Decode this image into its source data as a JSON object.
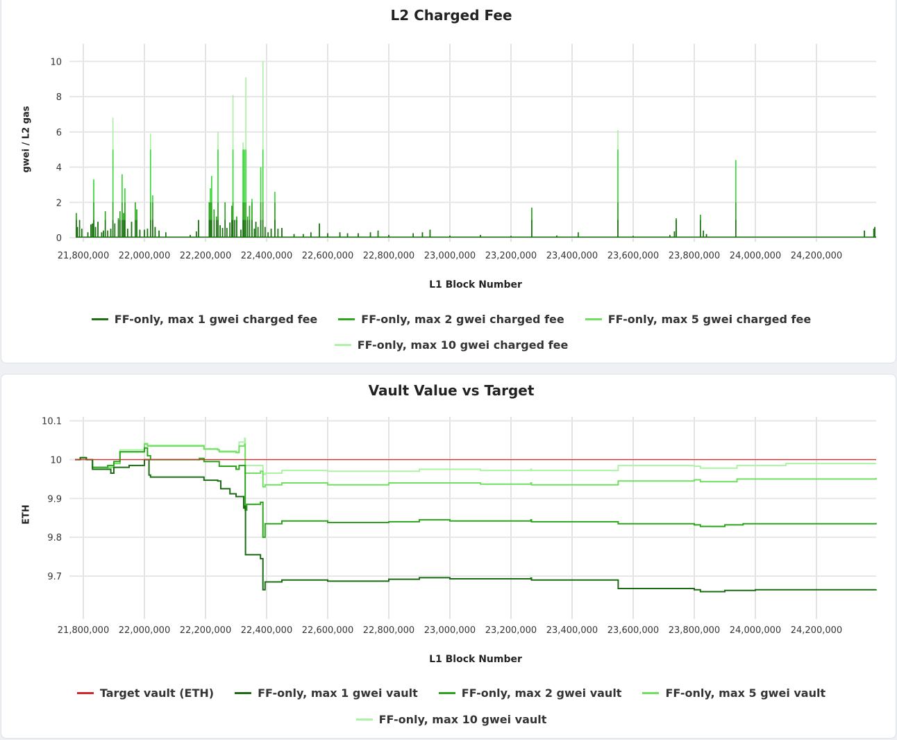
{
  "chart_data": [
    {
      "type": "line",
      "title": "L2 Charged Fee",
      "xlabel": "L1 Block Number",
      "ylabel": "gwei / L2 gas",
      "xlim": [
        21772700,
        24395500
      ],
      "ylim": [
        0,
        11
      ],
      "xticks": [
        21800000,
        22000000,
        22200000,
        22400000,
        22600000,
        22800000,
        23000000,
        23200000,
        23400000,
        23600000,
        23800000,
        24000000,
        24200000
      ],
      "xtick_labels": [
        "21,800,000",
        "22,000,000",
        "22,200,000",
        "22,400,000",
        "22,600,000",
        "22,800,000",
        "23,000,000",
        "23,200,000",
        "23,400,000",
        "23,600,000",
        "23,800,000",
        "24,000,000",
        "24,200,000"
      ],
      "yticks": [
        0,
        2,
        4,
        6,
        8,
        10
      ],
      "ytick_labels": [
        "0",
        "2",
        "4",
        "6",
        "8",
        "10"
      ],
      "grid": true,
      "legend_position": "bottom",
      "baseline_fee": 0.03,
      "raw_fee_spikes": [
        [
          21777000,
          1.4
        ],
        [
          21781000,
          0.6
        ],
        [
          21788000,
          1.0
        ],
        [
          21795000,
          0.5
        ],
        [
          21815000,
          0.3
        ],
        [
          21825000,
          0.75
        ],
        [
          21830000,
          0.8
        ],
        [
          21834000,
          3.3
        ],
        [
          21840000,
          0.6
        ],
        [
          21848000,
          0.9
        ],
        [
          21860000,
          0.3
        ],
        [
          21866000,
          0.4
        ],
        [
          21872000,
          1.5
        ],
        [
          21880000,
          0.4
        ],
        [
          21890000,
          0.5
        ],
        [
          21897000,
          6.8
        ],
        [
          21903000,
          0.8
        ],
        [
          21915000,
          1.1
        ],
        [
          21920000,
          1.5
        ],
        [
          21927000,
          3.6
        ],
        [
          21932000,
          1.4
        ],
        [
          21936000,
          2.8
        ],
        [
          21945000,
          0.5
        ],
        [
          21958000,
          0.9
        ],
        [
          21970000,
          2.0
        ],
        [
          21975000,
          1.6
        ],
        [
          21985000,
          0.45
        ],
        [
          22000000,
          0.45
        ],
        [
          22010000,
          0.5
        ],
        [
          22020000,
          5.9
        ],
        [
          22027000,
          2.4
        ],
        [
          22035000,
          0.6
        ],
        [
          22048000,
          0.4
        ],
        [
          22070000,
          0.3
        ],
        [
          22150000,
          0.15
        ],
        [
          22170000,
          0.35
        ],
        [
          22177000,
          1.0
        ],
        [
          22212000,
          2.0
        ],
        [
          22216000,
          2.8
        ],
        [
          22220000,
          3.5
        ],
        [
          22228000,
          1.6
        ],
        [
          22236000,
          1.2
        ],
        [
          22241000,
          6.0
        ],
        [
          22248000,
          0.7
        ],
        [
          22256000,
          0.55
        ],
        [
          22264000,
          2.0
        ],
        [
          22270000,
          0.55
        ],
        [
          22280000,
          0.85
        ],
        [
          22286000,
          1.8
        ],
        [
          22290000,
          8.1
        ],
        [
          22296000,
          1.0
        ],
        [
          22302000,
          1.2
        ],
        [
          22316000,
          0.45
        ],
        [
          22323000,
          5.4
        ],
        [
          22327000,
          5.0
        ],
        [
          22332000,
          9.1
        ],
        [
          22338000,
          1.2
        ],
        [
          22344000,
          1.8
        ],
        [
          22352000,
          2.2
        ],
        [
          22360000,
          0.5
        ],
        [
          22365000,
          0.9
        ],
        [
          22372000,
          0.6
        ],
        [
          22381000,
          4.0
        ],
        [
          22388000,
          10.0
        ],
        [
          22395000,
          0.6
        ],
        [
          22405000,
          0.3
        ],
        [
          22415000,
          0.5
        ],
        [
          22427000,
          2.6
        ],
        [
          22437000,
          0.5
        ],
        [
          22450000,
          0.55
        ],
        [
          22490000,
          0.2
        ],
        [
          22520000,
          0.2
        ],
        [
          22545000,
          0.3
        ],
        [
          22573000,
          0.8
        ],
        [
          22600000,
          0.25
        ],
        [
          22640000,
          0.3
        ],
        [
          22665000,
          0.25
        ],
        [
          22700000,
          0.25
        ],
        [
          22740000,
          0.3
        ],
        [
          22765000,
          0.4
        ],
        [
          22800000,
          0.15
        ],
        [
          22880000,
          0.25
        ],
        [
          22910000,
          0.3
        ],
        [
          22935000,
          0.45
        ],
        [
          23000000,
          0.12
        ],
        [
          23100000,
          0.15
        ],
        [
          23200000,
          0.1
        ],
        [
          23268000,
          1.7
        ],
        [
          23350000,
          0.12
        ],
        [
          23420000,
          0.3
        ],
        [
          23550000,
          6.1
        ],
        [
          23600000,
          0.1
        ],
        [
          23720000,
          0.15
        ],
        [
          23735000,
          0.35
        ],
        [
          23741000,
          1.1
        ],
        [
          23820000,
          1.3
        ],
        [
          23830000,
          0.4
        ],
        [
          23840000,
          0.2
        ],
        [
          23936000,
          4.4
        ],
        [
          24100000,
          0.05
        ],
        [
          24357000,
          0.4
        ],
        [
          24388000,
          0.5
        ],
        [
          24391000,
          0.6
        ]
      ],
      "series": [
        {
          "name": "FF-only, max 1 gwei charged fee",
          "cap": 1,
          "color": "#1e6f14"
        },
        {
          "name": "FF-only, max 2 gwei charged fee",
          "cap": 2,
          "color": "#2ea61f"
        },
        {
          "name": "FF-only, max 5 gwei charged fee",
          "cap": 5,
          "color": "#38d838"
        },
        {
          "name": "FF-only, max 10 gwei charged fee",
          "cap": 10,
          "color": "#a8f0a0"
        }
      ]
    },
    {
      "type": "line",
      "title": "Vault Value vs Target",
      "xlabel": "L1 Block Number",
      "ylabel": "ETH",
      "xlim": [
        21772700,
        24395500
      ],
      "ylim": [
        9.6,
        10.11
      ],
      "xticks": [
        21800000,
        22000000,
        22200000,
        22400000,
        22600000,
        22800000,
        23000000,
        23200000,
        23400000,
        23600000,
        23800000,
        24000000,
        24200000
      ],
      "xtick_labels": [
        "21,800,000",
        "22,000,000",
        "22,200,000",
        "22,400,000",
        "22,600,000",
        "22,800,000",
        "23,000,000",
        "23,200,000",
        "23,400,000",
        "23,600,000",
        "23,800,000",
        "24,000,000",
        "24,200,000"
      ],
      "yticks": [
        9.7,
        9.8,
        9.9,
        10,
        10.1
      ],
      "ytick_labels": [
        "9.7",
        "9.8",
        "9.9",
        "10",
        "10.1"
      ],
      "grid": true,
      "legend_position": "bottom",
      "series": [
        {
          "name": "Target vault (ETH)",
          "color": "#d62728",
          "points": [
            [
              21772700,
              10.0
            ],
            [
              24395500,
              10.0
            ]
          ]
        },
        {
          "name": "FF-only, max 1 gwei vault",
          "color": "#1a6b12",
          "points": [
            [
              21773000,
              10.0
            ],
            [
              21790000,
              10.005
            ],
            [
              21810000,
              10.0
            ],
            [
              21830000,
              9.975
            ],
            [
              21870000,
              9.975
            ],
            [
              21890000,
              9.965
            ],
            [
              21900000,
              9.98
            ],
            [
              21950000,
              9.985
            ],
            [
              22000000,
              10.0
            ],
            [
              22013000,
              10.0
            ],
            [
              22015000,
              9.96
            ],
            [
              22020000,
              9.955
            ],
            [
              22180000,
              9.955
            ],
            [
              22195000,
              9.947
            ],
            [
              22240000,
              9.945
            ],
            [
              22250000,
              9.925
            ],
            [
              22280000,
              9.912
            ],
            [
              22300000,
              9.905
            ],
            [
              22322000,
              9.905
            ],
            [
              22325000,
              9.875
            ],
            [
              22329000,
              9.88
            ],
            [
              22331000,
              9.755
            ],
            [
              22370000,
              9.755
            ],
            [
              22380000,
              9.745
            ],
            [
              22388000,
              9.665
            ],
            [
              22395000,
              9.685
            ],
            [
              22420000,
              9.685
            ],
            [
              22450000,
              9.69
            ],
            [
              22600000,
              9.687
            ],
            [
              22800000,
              9.692
            ],
            [
              22900000,
              9.696
            ],
            [
              23000000,
              9.693
            ],
            [
              23265000,
              9.695
            ],
            [
              23267000,
              9.69
            ],
            [
              23549000,
              9.69
            ],
            [
              23551000,
              9.668
            ],
            [
              23800000,
              9.665
            ],
            [
              23820000,
              9.66
            ],
            [
              23900000,
              9.663
            ],
            [
              24000000,
              9.665
            ],
            [
              24395000,
              9.666
            ]
          ]
        },
        {
          "name": "FF-only, max 2 gwei vault",
          "color": "#2aa51b",
          "points": [
            [
              21773000,
              10.0
            ],
            [
              21790000,
              10.005
            ],
            [
              21810000,
              10.0
            ],
            [
              21830000,
              9.98
            ],
            [
              21880000,
              9.985
            ],
            [
              21900000,
              9.995
            ],
            [
              21920000,
              10.02
            ],
            [
              22000000,
              10.03
            ],
            [
              22010000,
              10.01
            ],
            [
              22020000,
              10.0
            ],
            [
              22180000,
              10.003
            ],
            [
              22195000,
              9.995
            ],
            [
              22240000,
              9.995
            ],
            [
              22245000,
              9.983
            ],
            [
              22300000,
              9.975
            ],
            [
              22310000,
              9.985
            ],
            [
              22328000,
              9.985
            ],
            [
              22330000,
              9.87
            ],
            [
              22335000,
              9.885
            ],
            [
              22380000,
              9.89
            ],
            [
              22388000,
              9.8
            ],
            [
              22395000,
              9.835
            ],
            [
              22450000,
              9.842
            ],
            [
              22600000,
              9.838
            ],
            [
              22800000,
              9.84
            ],
            [
              22900000,
              9.845
            ],
            [
              23000000,
              9.842
            ],
            [
              23265000,
              9.845
            ],
            [
              23267000,
              9.84
            ],
            [
              23549000,
              9.84
            ],
            [
              23551000,
              9.835
            ],
            [
              23800000,
              9.832
            ],
            [
              23820000,
              9.828
            ],
            [
              23900000,
              9.832
            ],
            [
              23960000,
              9.835
            ],
            [
              24395000,
              9.837
            ]
          ]
        },
        {
          "name": "FF-only, max 5 gwei vault",
          "color": "#6fe060",
          "points": [
            [
              21773000,
              10.0
            ],
            [
              21790000,
              10.005
            ],
            [
              21810000,
              10.0
            ],
            [
              21830000,
              9.98
            ],
            [
              21900000,
              9.99
            ],
            [
              21920000,
              10.02
            ],
            [
              22000000,
              10.04
            ],
            [
              22010000,
              10.035
            ],
            [
              22180000,
              10.035
            ],
            [
              22195000,
              10.027
            ],
            [
              22240000,
              10.025
            ],
            [
              22245000,
              10.02
            ],
            [
              22300000,
              10.018
            ],
            [
              22310000,
              10.035
            ],
            [
              22328000,
              10.04
            ],
            [
              22330000,
              9.965
            ],
            [
              22380000,
              9.97
            ],
            [
              22388000,
              9.93
            ],
            [
              22395000,
              9.935
            ],
            [
              22450000,
              9.94
            ],
            [
              22600000,
              9.935
            ],
            [
              22800000,
              9.94
            ],
            [
              22900000,
              9.94
            ],
            [
              23100000,
              9.937
            ],
            [
              23265000,
              9.94
            ],
            [
              23267000,
              9.935
            ],
            [
              23549000,
              9.935
            ],
            [
              23551000,
              9.945
            ],
            [
              23800000,
              9.948
            ],
            [
              23820000,
              9.943
            ],
            [
              23940000,
              9.95
            ],
            [
              24395000,
              9.953
            ]
          ]
        },
        {
          "name": "FF-only, max 10 gwei vault",
          "color": "#aef2a6",
          "points": [
            [
              21773000,
              10.0
            ],
            [
              21790000,
              10.005
            ],
            [
              21810000,
              10.0
            ],
            [
              21830000,
              9.98
            ],
            [
              21900000,
              9.99
            ],
            [
              21920000,
              10.025
            ],
            [
              22000000,
              10.042
            ],
            [
              22010000,
              10.037
            ],
            [
              22180000,
              10.037
            ],
            [
              22195000,
              10.028
            ],
            [
              22240000,
              10.026
            ],
            [
              22245000,
              10.022
            ],
            [
              22300000,
              10.02
            ],
            [
              22310000,
              10.045
            ],
            [
              22328000,
              10.055
            ],
            [
              22330000,
              9.985
            ],
            [
              22380000,
              9.985
            ],
            [
              22388000,
              9.962
            ],
            [
              22395000,
              9.965
            ],
            [
              22450000,
              9.972
            ],
            [
              22600000,
              9.97
            ],
            [
              22900000,
              9.975
            ],
            [
              23100000,
              9.972
            ],
            [
              23265000,
              9.975
            ],
            [
              23267000,
              9.972
            ],
            [
              23549000,
              9.972
            ],
            [
              23551000,
              9.985
            ],
            [
              23800000,
              9.983
            ],
            [
              23820000,
              9.978
            ],
            [
              23940000,
              9.985
            ],
            [
              24100000,
              9.99
            ],
            [
              24395000,
              9.99
            ]
          ]
        }
      ]
    }
  ]
}
